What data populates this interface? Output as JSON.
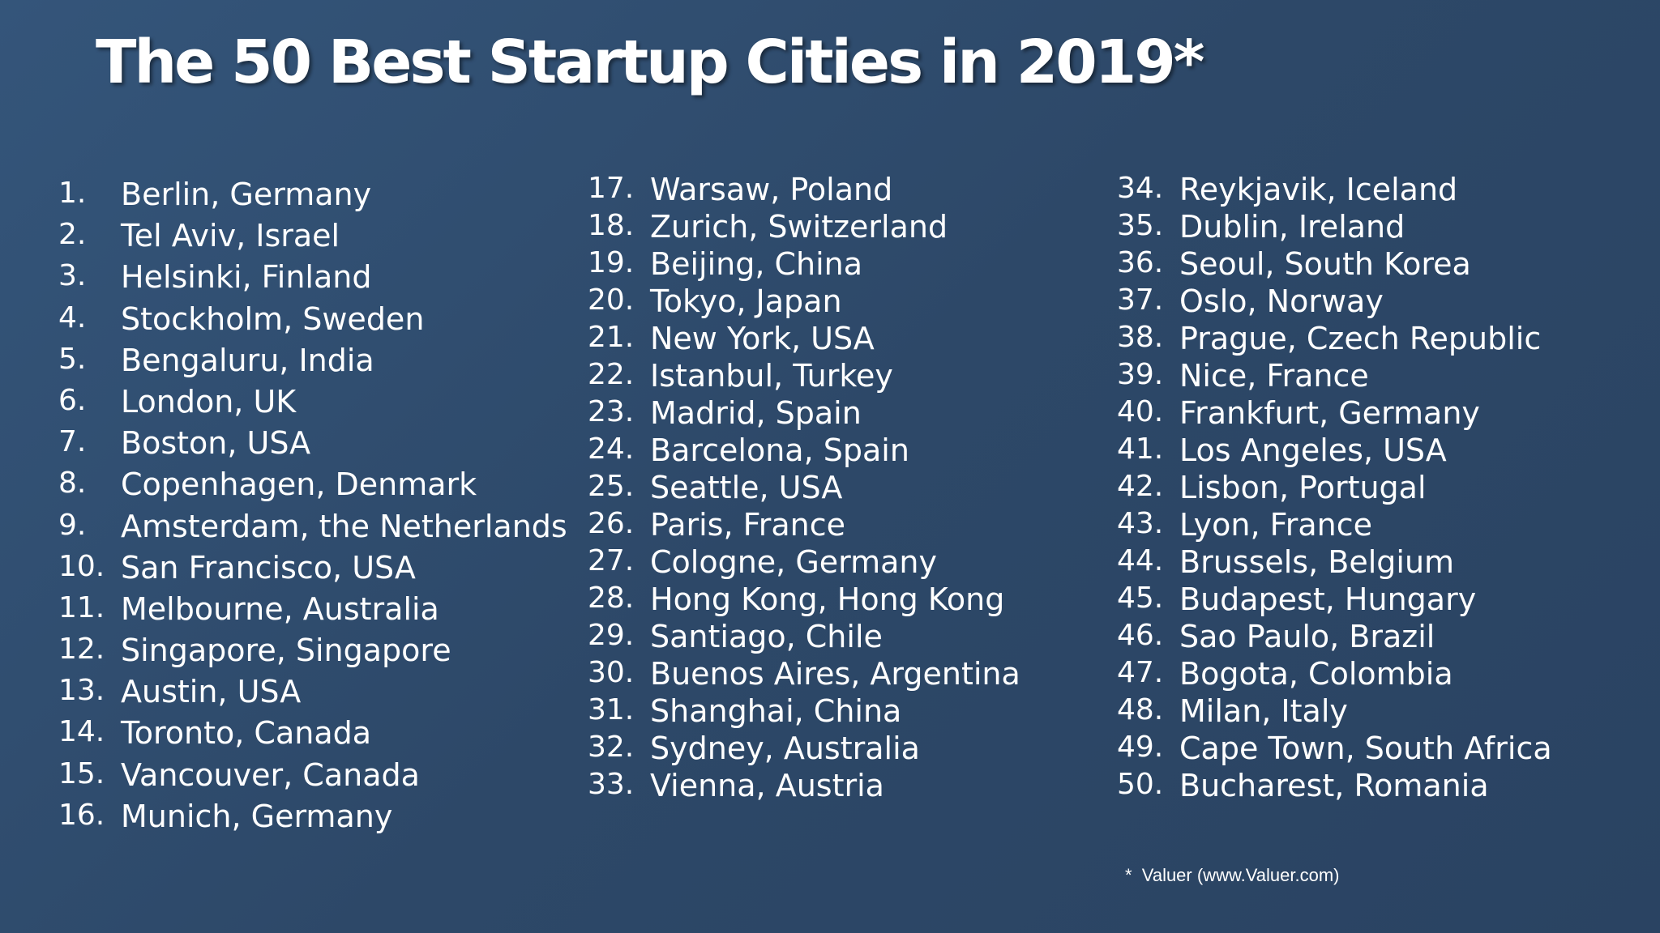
{
  "title": "The 50 Best Startup Cities in 2019*",
  "footnote": "*  Valuer (www.Valuer.com)",
  "columns": [
    [
      {
        "rank": "1.",
        "city": "Berlin, Germany"
      },
      {
        "rank": "2.",
        "city": "Tel Aviv, Israel"
      },
      {
        "rank": "3.",
        "city": "Helsinki, Finland"
      },
      {
        "rank": "4.",
        "city": "Stockholm, Sweden"
      },
      {
        "rank": "5.",
        "city": "Bengaluru, India"
      },
      {
        "rank": "6.",
        "city": "London, UK"
      },
      {
        "rank": "7.",
        "city": "Boston, USA"
      },
      {
        "rank": "8.",
        "city": "Copenhagen, Denmark"
      },
      {
        "rank": "9.",
        "city": "Amsterdam, the Netherlands"
      },
      {
        "rank": "10.",
        "city": "San Francisco, USA"
      },
      {
        "rank": "11.",
        "city": "Melbourne, Australia"
      },
      {
        "rank": "12.",
        "city": "Singapore, Singapore"
      },
      {
        "rank": "13.",
        "city": "Austin, USA"
      },
      {
        "rank": "14.",
        "city": "Toronto, Canada"
      },
      {
        "rank": "15.",
        "city": "Vancouver, Canada"
      },
      {
        "rank": "16.",
        "city": "Munich, Germany"
      }
    ],
    [
      {
        "rank": "17.",
        "city": "Warsaw, Poland"
      },
      {
        "rank": "18.",
        "city": "Zurich, Switzerland"
      },
      {
        "rank": "19.",
        "city": "Beijing, China"
      },
      {
        "rank": "20.",
        "city": "Tokyo, Japan"
      },
      {
        "rank": "21.",
        "city": "New York, USA"
      },
      {
        "rank": "22.",
        "city": "Istanbul, Turkey"
      },
      {
        "rank": "23.",
        "city": "Madrid, Spain"
      },
      {
        "rank": "24.",
        "city": "Barcelona, Spain"
      },
      {
        "rank": "25.",
        "city": "Seattle, USA"
      },
      {
        "rank": "26.",
        "city": "Paris, France"
      },
      {
        "rank": "27.",
        "city": "Cologne, Germany"
      },
      {
        "rank": "28.",
        "city": "Hong Kong, Hong Kong"
      },
      {
        "rank": "29.",
        "city": "Santiago, Chile"
      },
      {
        "rank": "30.",
        "city": "Buenos Aires, Argentina"
      },
      {
        "rank": "31.",
        "city": "Shanghai, China"
      },
      {
        "rank": "32.",
        "city": "Sydney, Australia"
      },
      {
        "rank": "33.",
        "city": "Vienna, Austria"
      }
    ],
    [
      {
        "rank": "34.",
        "city": "Reykjavik, Iceland"
      },
      {
        "rank": "35.",
        "city": "Dublin, Ireland"
      },
      {
        "rank": "36.",
        "city": "Seoul, South Korea"
      },
      {
        "rank": "37.",
        "city": "Oslo, Norway"
      },
      {
        "rank": "38.",
        "city": "Prague, Czech Republic"
      },
      {
        "rank": "39.",
        "city": "Nice, France"
      },
      {
        "rank": "40.",
        "city": "Frankfurt, Germany"
      },
      {
        "rank": "41.",
        "city": "Los Angeles, USA"
      },
      {
        "rank": "42.",
        "city": "Lisbon, Portugal"
      },
      {
        "rank": "43.",
        "city": "Lyon, France"
      },
      {
        "rank": "44.",
        "city": "Brussels, Belgium"
      },
      {
        "rank": "45.",
        "city": "Budapest, Hungary"
      },
      {
        "rank": "46.",
        "city": "Sao Paulo, Brazil"
      },
      {
        "rank": "47.",
        "city": "Bogota, Colombia"
      },
      {
        "rank": "48.",
        "city": "Milan, Italy"
      },
      {
        "rank": "49.",
        "city": "Cape Town, South Africa"
      },
      {
        "rank": "50.",
        "city": "Bucharest, Romania"
      }
    ]
  ]
}
